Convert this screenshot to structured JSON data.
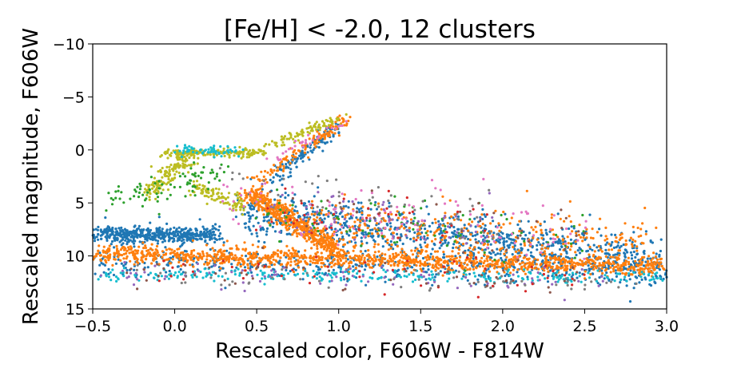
{
  "chart_data": {
    "type": "scatter",
    "title": "[Fe/H] < -2.0, 12 clusters",
    "xlabel": "Rescaled color, F606W - F814W",
    "ylabel": "Rescaled magnitude, F606W",
    "xlim": [
      -0.5,
      3.0
    ],
    "ylim": [
      15,
      -10
    ],
    "y_inverted": true,
    "grid": false,
    "legend": "none",
    "x_ticks": [
      "−0.5",
      "0.0",
      "0.5",
      "1.0",
      "1.5",
      "2.0",
      "2.5",
      "3.0"
    ],
    "x_tick_values": [
      -0.5,
      0.0,
      0.5,
      1.0,
      1.5,
      2.0,
      2.5,
      3.0
    ],
    "y_ticks": [
      "−10",
      "−5",
      "0",
      "5",
      "10",
      "15"
    ],
    "y_tick_values": [
      -10,
      -5,
      0,
      5,
      10,
      15
    ],
    "series": [
      {
        "color": "#1f77b4",
        "regions": [
          {
            "kind": "band",
            "x0": -0.5,
            "y0": 8.0,
            "x1": 0.25,
            "y1": 8.0,
            "spread": 0.8,
            "n": 500
          },
          {
            "kind": "band",
            "x0": 0.4,
            "y0": 6.0,
            "x1": 3.0,
            "y1": 10.5,
            "spread": 2.2,
            "n": 900
          },
          {
            "kind": "band",
            "x0": -0.5,
            "y0": 10.5,
            "x1": 3.0,
            "y1": 11.5,
            "spread": 1.4,
            "n": 500
          },
          {
            "kind": "band",
            "x0": 0.55,
            "y0": 3.5,
            "x1": 1.0,
            "y1": -2.5,
            "spread": 0.5,
            "n": 120
          }
        ]
      },
      {
        "color": "#ff7f0e",
        "regions": [
          {
            "kind": "band",
            "x0": -0.5,
            "y0": 9.8,
            "x1": 3.0,
            "y1": 11.0,
            "spread": 0.9,
            "n": 1200
          },
          {
            "kind": "band",
            "x0": 0.45,
            "y0": 4.0,
            "x1": 1.0,
            "y1": 9.5,
            "spread": 0.9,
            "n": 500
          },
          {
            "kind": "band",
            "x0": 0.5,
            "y0": 3.0,
            "x1": 1.05,
            "y1": -3.0,
            "spread": 0.5,
            "n": 120
          },
          {
            "kind": "band",
            "x0": 0.8,
            "y0": 7.0,
            "x1": 2.9,
            "y1": 9.0,
            "spread": 2.5,
            "n": 350
          }
        ]
      },
      {
        "color": "#bcbd22",
        "regions": [
          {
            "kind": "band",
            "x0": -0.15,
            "y0": 4.0,
            "x1": 0.1,
            "y1": 0.5,
            "spread": 0.8,
            "n": 140
          },
          {
            "kind": "band",
            "x0": -0.05,
            "y0": 0.4,
            "x1": 0.55,
            "y1": 0.2,
            "spread": 0.4,
            "n": 160
          },
          {
            "kind": "band",
            "x0": 0.1,
            "y0": 3.5,
            "x1": 0.45,
            "y1": 5.5,
            "spread": 0.8,
            "n": 100
          },
          {
            "kind": "band",
            "x0": 0.6,
            "y0": -0.5,
            "x1": 1.0,
            "y1": -3.0,
            "spread": 0.4,
            "n": 80
          }
        ]
      },
      {
        "color": "#17becf",
        "regions": [
          {
            "kind": "band",
            "x0": -0.5,
            "y0": 11.8,
            "x1": 3.0,
            "y1": 12.0,
            "spread": 0.6,
            "n": 260
          },
          {
            "kind": "band",
            "x0": 0.0,
            "y0": 0.0,
            "x1": 0.4,
            "y1": 0.1,
            "spread": 0.4,
            "n": 60
          }
        ]
      },
      {
        "color": "#2ca02c",
        "regions": [
          {
            "kind": "band",
            "x0": -0.4,
            "y0": 5.0,
            "x1": 0.3,
            "y1": 2.0,
            "spread": 1.5,
            "n": 80
          },
          {
            "kind": "band",
            "x0": 0.5,
            "y0": 6.0,
            "x1": 2.5,
            "y1": 9.0,
            "spread": 2.5,
            "n": 80
          }
        ]
      },
      {
        "color": "#e377c2",
        "regions": [
          {
            "kind": "band",
            "x0": 0.3,
            "y0": 5.0,
            "x1": 2.5,
            "y1": 8.0,
            "spread": 3.0,
            "n": 110
          },
          {
            "kind": "band",
            "x0": 0.6,
            "y0": 1.0,
            "x1": 1.0,
            "y1": -2.5,
            "spread": 0.5,
            "n": 30
          }
        ]
      },
      {
        "color": "#9467bd",
        "regions": [
          {
            "kind": "band",
            "x0": -0.4,
            "y0": 11.5,
            "x1": 2.8,
            "y1": 12.5,
            "spread": 1.2,
            "n": 80
          },
          {
            "kind": "band",
            "x0": 0.5,
            "y0": 5.0,
            "x1": 2.0,
            "y1": 8.0,
            "spread": 2.5,
            "n": 60
          }
        ]
      },
      {
        "color": "#7f7f7f",
        "regions": [
          {
            "kind": "band",
            "x0": -0.3,
            "y0": 12.0,
            "x1": 2.8,
            "y1": 12.5,
            "spread": 1.0,
            "n": 60
          },
          {
            "kind": "band",
            "x0": 0.3,
            "y0": 3.0,
            "x1": 2.0,
            "y1": 7.0,
            "spread": 2.5,
            "n": 50
          }
        ]
      },
      {
        "color": "#d62728",
        "regions": [
          {
            "kind": "band",
            "x0": -0.2,
            "y0": 11.0,
            "x1": 2.5,
            "y1": 12.0,
            "spread": 1.5,
            "n": 50
          },
          {
            "kind": "band",
            "x0": 0.5,
            "y0": 6.0,
            "x1": 2.0,
            "y1": 7.5,
            "spread": 3.0,
            "n": 40
          }
        ]
      },
      {
        "color": "#8c564b",
        "regions": [
          {
            "kind": "band",
            "x0": -0.3,
            "y0": 11.5,
            "x1": 2.5,
            "y1": 12.0,
            "spread": 1.5,
            "n": 50
          },
          {
            "kind": "band",
            "x0": 0.5,
            "y0": 6.0,
            "x1": 2.5,
            "y1": 8.0,
            "spread": 3.0,
            "n": 40
          }
        ]
      }
    ]
  }
}
